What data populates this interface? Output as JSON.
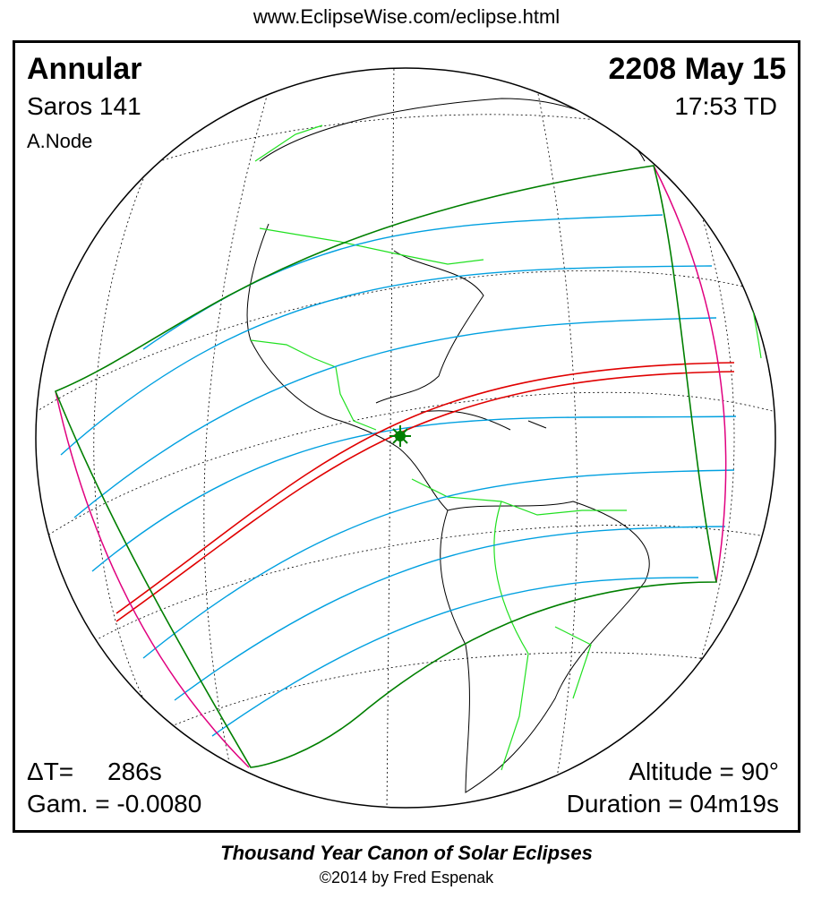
{
  "header": {
    "url": "www.EclipseWise.com/eclipse.html"
  },
  "eclipse": {
    "type": "Annular",
    "saros": "Saros 141",
    "node": "A.Node",
    "date": "2208 May 15",
    "time": "17:53 TD",
    "delta_t_label": "ΔT=",
    "delta_t_value": "286s",
    "gamma": "Gam. = -0.0080",
    "altitude": "Altitude = 90°",
    "duration": "Duration = 04m19s"
  },
  "footer": {
    "title": "Thousand Year Canon of Solar Eclipses",
    "copyright": "©2014 by Fred Espenak"
  },
  "colors": {
    "penumbra_limit": "#007f00",
    "magnitude_lines": "#00a0e0",
    "central_path": "#e00000",
    "rise_set_curves": "#e0007f",
    "borders": "#20e020",
    "greatest_eclipse": "#007f00"
  }
}
